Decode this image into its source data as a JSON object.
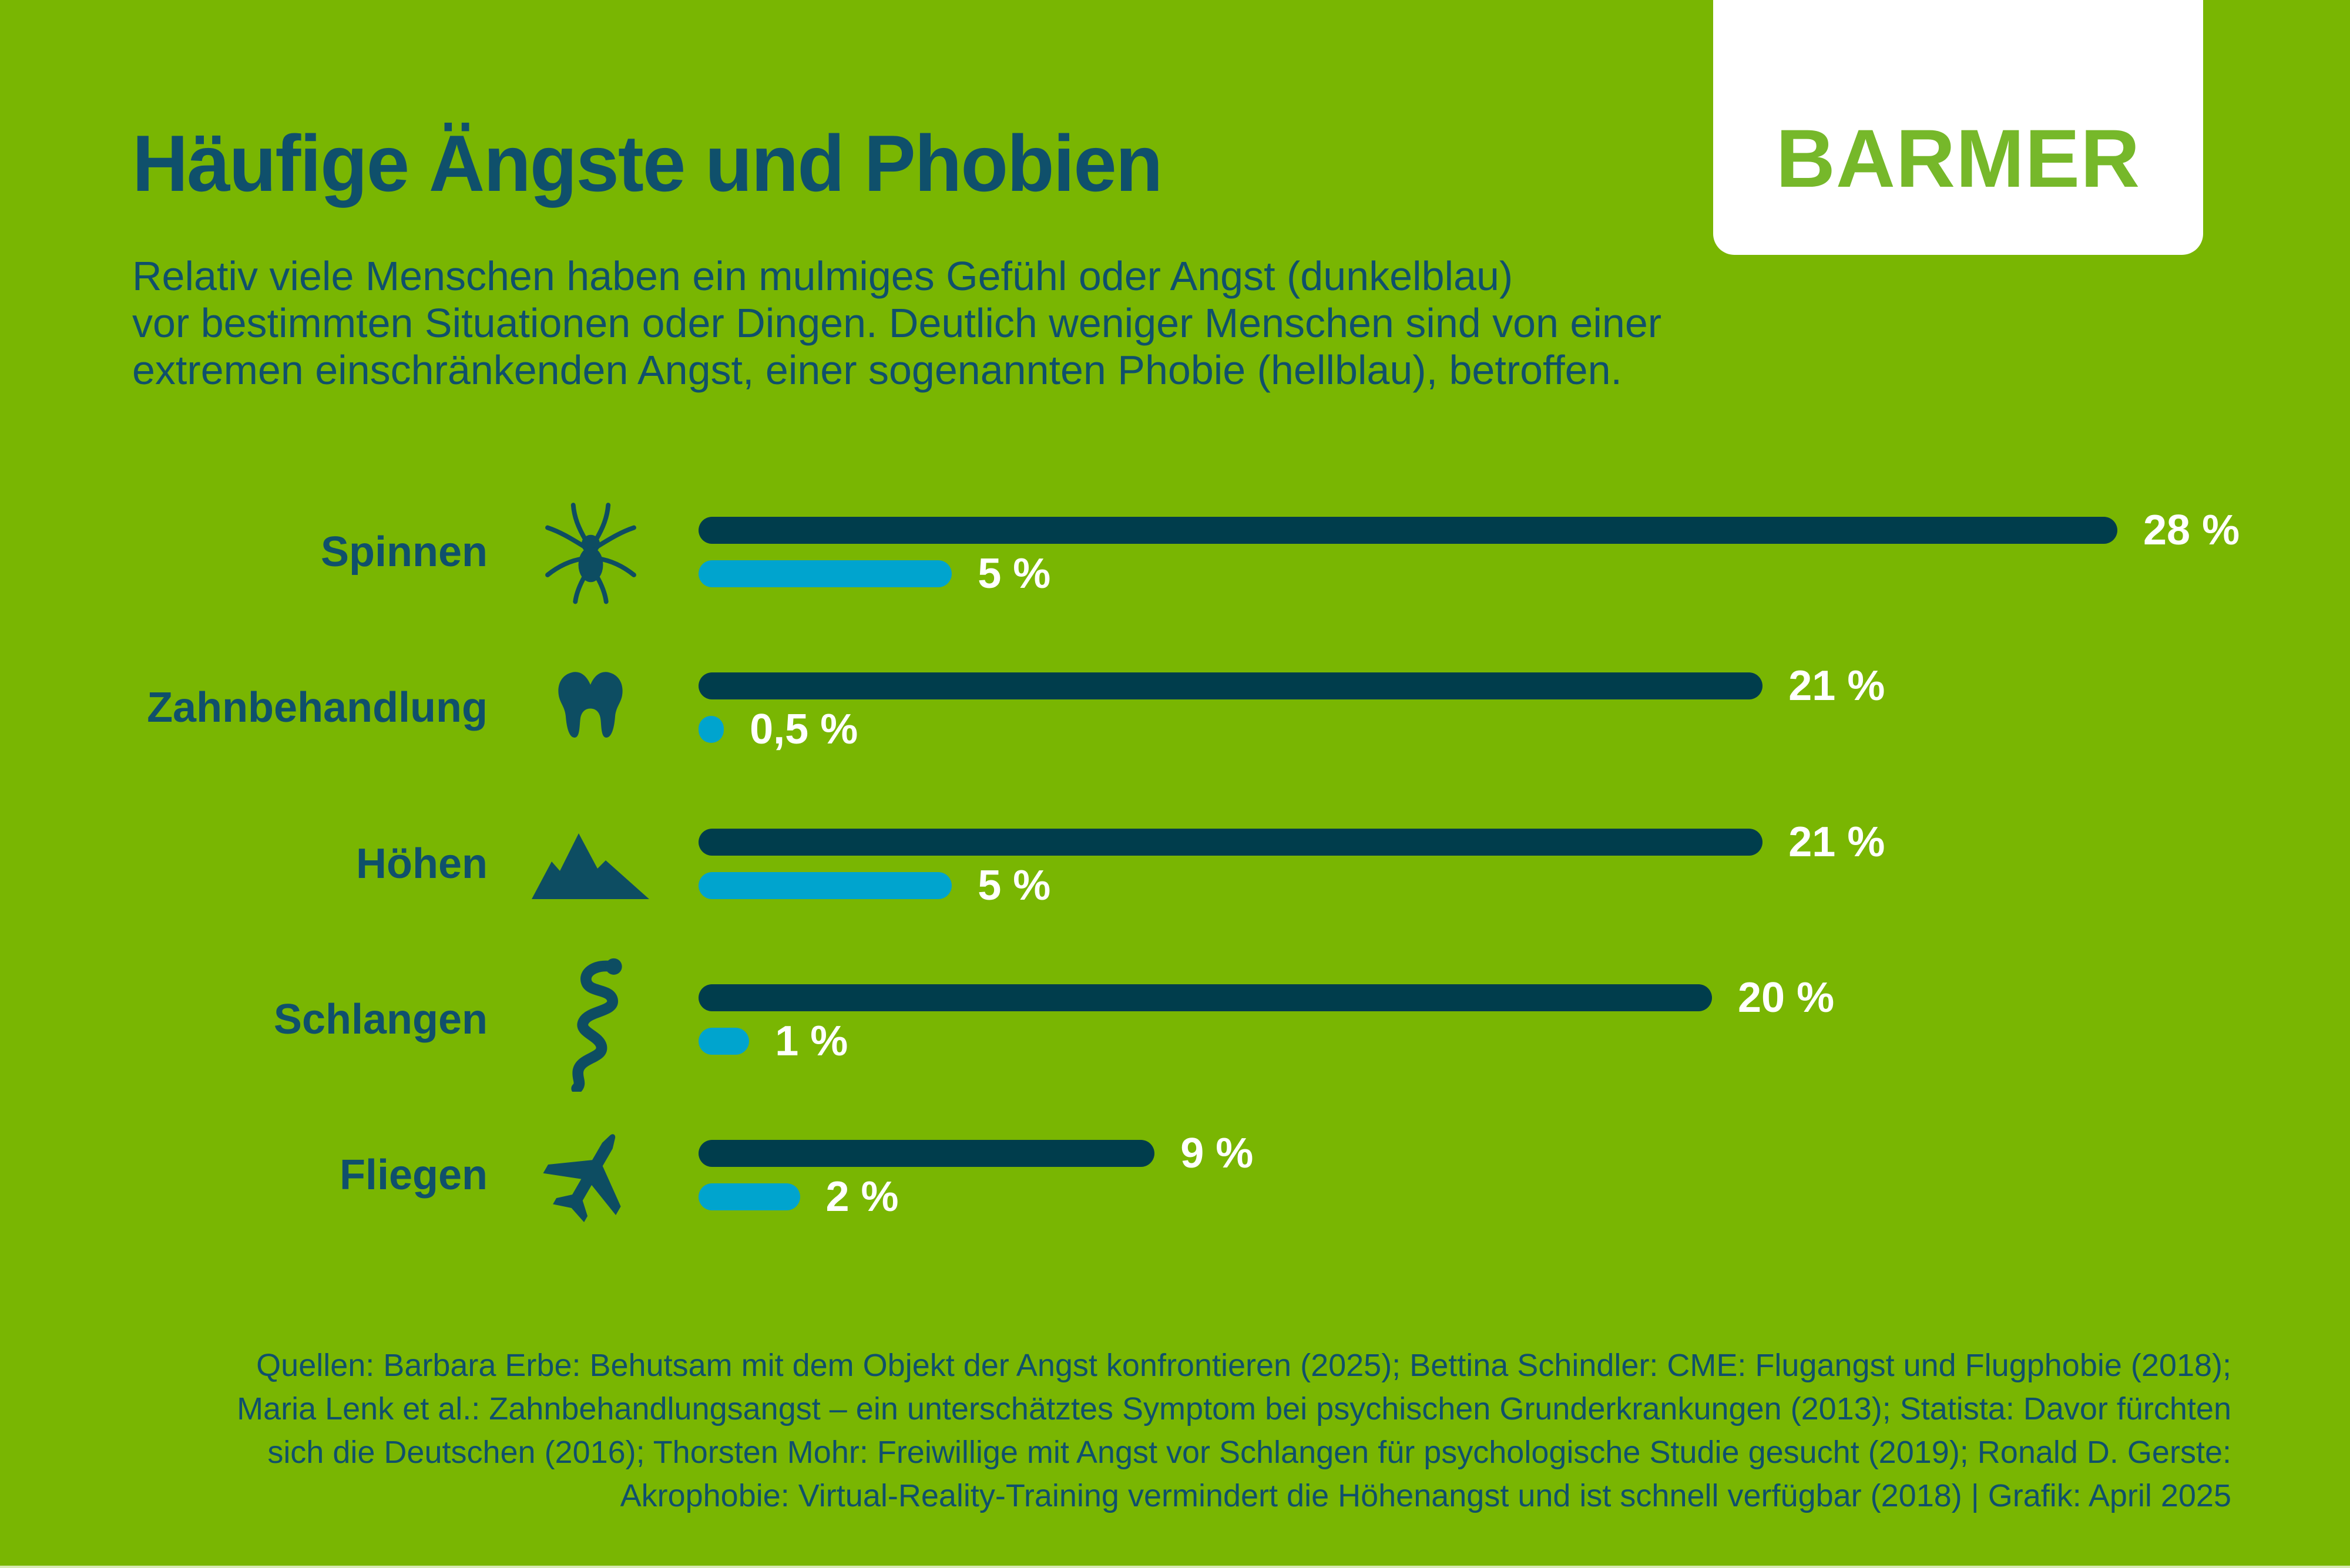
{
  "page": {
    "colors": {
      "background_green": "#79B602",
      "dark_blue_bar": "#003D4C",
      "light_blue_bar": "#00A4CE",
      "teal_text": "#0F506B",
      "logo_green": "#76B82A",
      "value_label_white": "#FFFFFF"
    }
  },
  "logo": {
    "text": "BARMER"
  },
  "header": {
    "title": "Häufige Ängste und Phobien",
    "subtitle_lines": [
      "Relativ viele Menschen haben ein mulmiges Gefühl oder Angst (dunkelblau)",
      "vor bestimmten Situationen oder Dingen. Deutlich weniger Menschen sind von einer",
      "extremen einschränkenden Angst, einer sogenannten Phobie (hellblau), betroffen."
    ]
  },
  "chart_data": {
    "type": "bar",
    "orientation": "horizontal",
    "title": "Häufige Ängste und Phobien",
    "unit": "percent",
    "x_range": [
      0,
      28
    ],
    "grid": false,
    "legend": "described in subtitle: dunkelblau = Angst, hellblau = Phobie",
    "categories": [
      "Spinnen",
      "Zahnbehandlung",
      "Höhen",
      "Schlangen",
      "Fliegen"
    ],
    "icons": [
      "spider",
      "tooth",
      "mountains",
      "snake",
      "airplane"
    ],
    "series": [
      {
        "name": "Angst / mulmiges Gefühl (dunkelblau)",
        "color": "#003D4C",
        "values": [
          28,
          21,
          21,
          20,
          9
        ],
        "labels": [
          "28 %",
          "21 %",
          "21 %",
          "20 %",
          "9 %"
        ]
      },
      {
        "name": "Phobie (hellblau)",
        "color": "#00A4CE",
        "values": [
          5,
          0.5,
          5,
          1,
          2
        ],
        "labels": [
          "5 %",
          "0,5 %",
          "5 %",
          "1 %",
          "2 %"
        ]
      }
    ]
  },
  "source": {
    "lines": [
      "Quellen: Barbara Erbe: Behutsam mit dem Objekt der Angst konfrontieren (2025); Bettina Schindler: CME: Flugangst und Flugphobie (2018);",
      "Maria Lenk et al.: Zahnbehandlungsangst – ein unterschätztes Symptom bei psychischen Grunderkrankungen (2013); Statista: Davor fürchten",
      "sich die Deutschen (2016); Thorsten Mohr: Freiwillige mit Angst vor Schlangen für psychologische Studie gesucht (2019); Ronald D. Gerste:",
      "Akrophobie: Virtual-Reality-Training vermindert die Höhenangst und ist schnell verfügbar (2018) | Grafik: April 2025"
    ]
  }
}
